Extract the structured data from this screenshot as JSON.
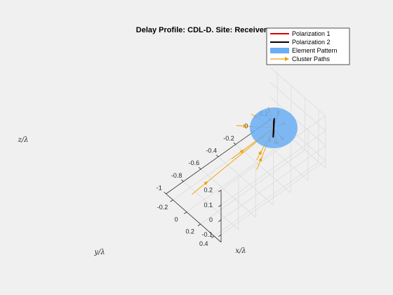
{
  "chart_data": {
    "type": "3d-line",
    "title": "Delay Profile: CDL-D. Site: Receiver",
    "xlabel": "x/λ",
    "ylabel": "y/λ",
    "zlabel": "z/λ",
    "xlim": [
      -1.0,
      0.2
    ],
    "ylim": [
      -0.3,
      0.5
    ],
    "zlim": [
      -0.15,
      0.2
    ],
    "x_ticks": [
      "-1",
      "-0.8",
      "-0.6",
      "-0.4",
      "-0.2",
      "0",
      "0.2"
    ],
    "y_ticks": [
      "-0.2",
      "0",
      "0.2",
      "0.4"
    ],
    "z_ticks": [
      "-0.1",
      "0",
      "0.1",
      "0.2"
    ],
    "grid": true,
    "legend_position": "top-right",
    "legend": [
      {
        "label": "Polarization 1",
        "color": "#e00000",
        "kind": "line"
      },
      {
        "label": "Polarization 2",
        "color": "#000000",
        "kind": "line"
      },
      {
        "label": "Element Pattern",
        "color": "#6aaef5",
        "kind": "patch"
      },
      {
        "label": "Cluster Paths",
        "color": "#f0a000",
        "kind": "arrow"
      }
    ],
    "element_pattern": {
      "center": [
        0,
        0,
        0
      ],
      "radius": 0.09
    },
    "polarization_1": {
      "from": [
        0,
        0,
        -0.04
      ],
      "to": [
        0,
        0,
        0.05
      ]
    },
    "polarization_2": {
      "from": [
        -0.03,
        0.03,
        -0.04
      ],
      "to": [
        0.03,
        -0.03,
        0.04
      ]
    },
    "cluster_paths": [
      {
        "start": [
          -0.98,
          0.05,
          -0.02
        ]
      },
      {
        "start": [
          -0.58,
          0.12,
          0.08
        ]
      },
      {
        "start": [
          -0.45,
          0.32,
          0.1
        ]
      },
      {
        "start": [
          -0.55,
          0.45,
          0.13
        ]
      },
      {
        "start": [
          -0.26,
          0.35,
          0.14
        ]
      },
      {
        "start": [
          -0.35,
          -0.1,
          0.12
        ]
      },
      {
        "start": [
          -0.14,
          -0.15,
          0.09
        ]
      },
      {
        "start": [
          0.03,
          -0.12,
          0.08
        ]
      },
      {
        "start": [
          0.1,
          -0.05,
          0.06
        ]
      },
      {
        "start": [
          0.12,
          0.0,
          -0.02
        ]
      },
      {
        "start": [
          0.05,
          0.08,
          -0.07
        ]
      },
      {
        "start": [
          0.0,
          0.06,
          -0.09
        ]
      },
      {
        "start": [
          -0.1,
          0.06,
          -0.03
        ]
      },
      {
        "start": [
          -0.15,
          0.0,
          -0.01
        ]
      },
      {
        "start": [
          0.08,
          -0.03,
          0.06
        ]
      },
      {
        "start": [
          0.02,
          0.1,
          -0.04
        ]
      }
    ]
  }
}
